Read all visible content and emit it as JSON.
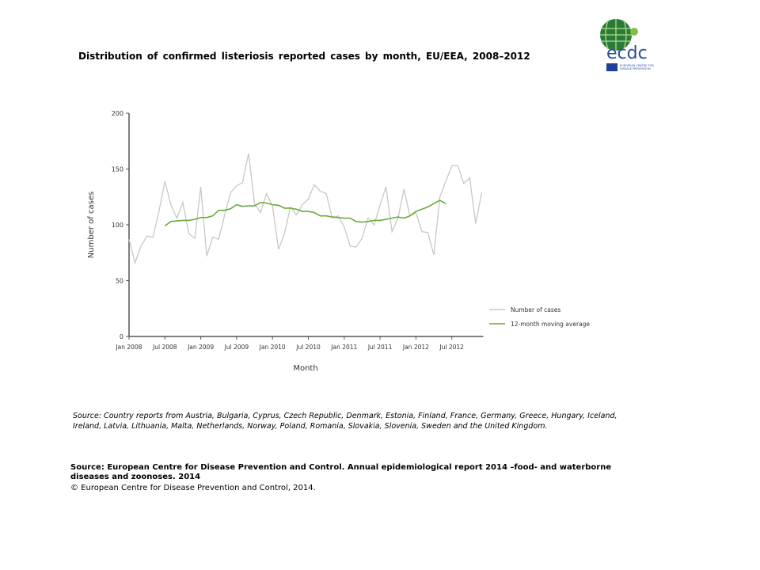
{
  "title": "Distribution of confirmed listeriosis reported cases by month, EU/EEA, 2008–2012",
  "logo": {
    "text": "ecdc",
    "subtitle": "EUROPEAN CENTRE FOR DISEASE PREVENTION AND CONTROL"
  },
  "chart_data": {
    "type": "line",
    "xlabel": "Month",
    "ylabel": "Number of cases",
    "ylim": [
      0,
      200
    ],
    "yticks": [
      "0",
      "50",
      "100",
      "150",
      "200"
    ],
    "xticks": [
      "Jan 2008",
      "Jul 2008",
      "Jan 2009",
      "Jul 2009",
      "Jan 2010",
      "Jul 2010",
      "Jan 2011",
      "Jul 2011",
      "Jan 2012",
      "Jul 2012"
    ],
    "x_range": [
      "Jan 2008",
      "Dec 2012"
    ],
    "grid": false,
    "legend": "right",
    "series": [
      {
        "name": "Number of cases",
        "color": "#c8c8c8",
        "start": "Jan 2008",
        "values": [
          87,
          66,
          81,
          90,
          89,
          112,
          139,
          118,
          106,
          120,
          92,
          88,
          134,
          72,
          89,
          87,
          109,
          129,
          135,
          138,
          164,
          119,
          111,
          128,
          117,
          78,
          92,
          116,
          109,
          118,
          123,
          136,
          130,
          128,
          106,
          108,
          98,
          81,
          80,
          88,
          106,
          100,
          118,
          134,
          94,
          106,
          132,
          108,
          111,
          94,
          93,
          73,
          125,
          139,
          153,
          153,
          137,
          142,
          101,
          129
        ]
      },
      {
        "name": "12-month moving average",
        "color": "#6aaa3a",
        "start": "Jul 2008",
        "values": [
          99,
          103,
          103.5,
          104,
          104,
          105,
          106.5,
          106.5,
          108,
          113,
          113,
          114.5,
          118,
          116.5,
          117,
          117,
          120,
          119.5,
          118,
          117.5,
          115,
          115,
          114,
          112,
          112,
          111,
          108,
          108,
          107,
          106.5,
          106,
          106,
          103,
          102.5,
          103,
          104,
          104,
          105,
          106,
          107,
          106,
          108,
          112,
          114,
          116,
          119,
          122,
          119
        ]
      }
    ]
  },
  "source_countries": "Source: Country reports from Austria, Bulgaria, Cyprus, Czech Republic, Denmark, Estonia, Finland, France, Germany, Greece, Hungary, Iceland, Ireland, Latvia, Lithuania, Malta, Netherlands, Norway, Poland, Romania, Slovakia, Slovenia, Sweden and the United Kingdom.",
  "source_main": "Source: European Centre for Disease Prevention and Control. Annual epidemiological report 2014 –food- and waterborne diseases and zoonoses. 2014",
  "copyright": "© European Centre for Disease Prevention and Control, 2014."
}
